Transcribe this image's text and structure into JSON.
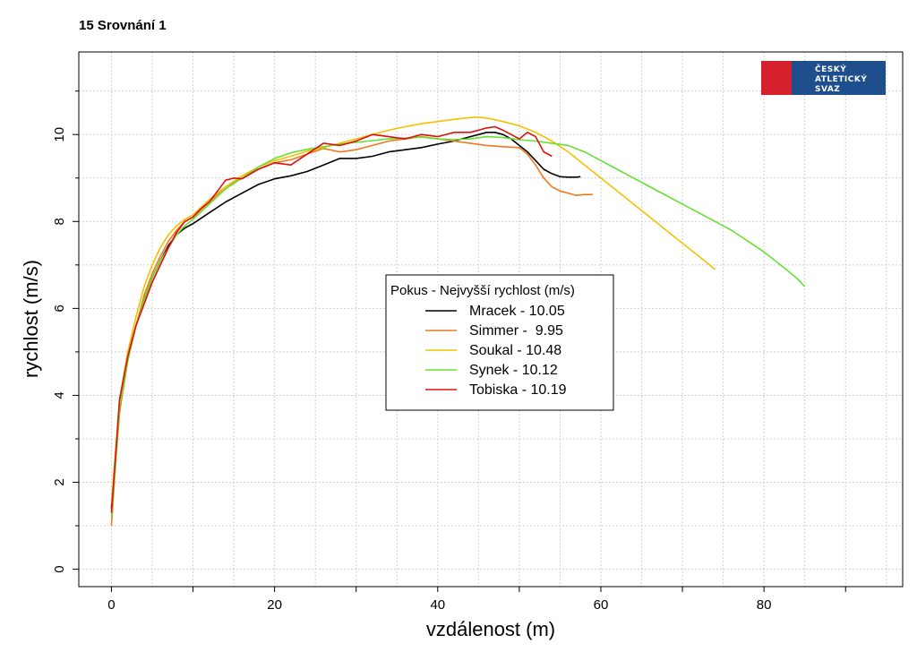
{
  "title": "15 Srovnání 1",
  "logo": {
    "lines": [
      "ČESKÝ",
      "ATLETICKÝ",
      "SVAZ"
    ],
    "colors": {
      "red": "#d6202c",
      "blue": "#1f4e8c"
    }
  },
  "chart_data": {
    "type": "line",
    "title": "15 Srovnání 1",
    "xlabel": "vzdálenost (m)",
    "ylabel": "rychlost (m/s)",
    "xlim": [
      -4,
      97
    ],
    "ylim": [
      -0.4,
      11.9
    ],
    "xticks": [
      0,
      20,
      40,
      60,
      80
    ],
    "yticks": [
      0,
      2,
      4,
      6,
      8,
      10
    ],
    "grid": true,
    "legend": {
      "title": "Pokus - Nejvyšší rychlost (m/s)",
      "placement": "center",
      "entries": [
        "Mracek - 10.05",
        "Simmer -  9.95",
        "Soukal - 10.48",
        "Synek - 10.12",
        "Tobiska - 10.19"
      ]
    },
    "series": [
      {
        "name": "Mracek - 10.05",
        "color": "#000000",
        "x": [
          0,
          0.5,
          1,
          2,
          3,
          4,
          5,
          6,
          7,
          8,
          9,
          10,
          12,
          14,
          16,
          18,
          20,
          22,
          24,
          26,
          28,
          30,
          32,
          34,
          36,
          38,
          40,
          42,
          44,
          46,
          47,
          48,
          49,
          50,
          51,
          52,
          53,
          54,
          55,
          56,
          57,
          57.5
        ],
        "y": [
          1.4,
          2.6,
          3.8,
          4.9,
          5.6,
          6.2,
          6.7,
          7.1,
          7.45,
          7.7,
          7.85,
          7.95,
          8.2,
          8.45,
          8.65,
          8.85,
          8.98,
          9.05,
          9.15,
          9.3,
          9.45,
          9.45,
          9.5,
          9.6,
          9.65,
          9.7,
          9.78,
          9.85,
          9.95,
          10.05,
          10.05,
          10.0,
          9.9,
          9.75,
          9.6,
          9.4,
          9.2,
          9.1,
          9.03,
          9.02,
          9.02,
          9.03
        ]
      },
      {
        "name": "Simmer -  9.95",
        "color": "#f07820",
        "x": [
          0,
          0.5,
          1,
          2,
          3,
          4,
          5,
          6,
          7,
          8,
          9,
          10,
          12,
          14,
          16,
          18,
          20,
          22,
          24,
          26,
          28,
          30,
          32,
          34,
          36,
          38,
          40,
          42,
          44,
          46,
          48,
          50,
          51,
          52,
          53,
          54,
          55,
          56,
          57,
          58,
          59
        ],
        "y": [
          1.0,
          2.4,
          3.6,
          4.8,
          5.6,
          6.3,
          6.8,
          7.2,
          7.55,
          7.8,
          8.0,
          8.1,
          8.45,
          8.8,
          9.0,
          9.2,
          9.35,
          9.42,
          9.55,
          9.68,
          9.6,
          9.65,
          9.75,
          9.85,
          9.9,
          9.95,
          9.9,
          9.85,
          9.8,
          9.75,
          9.72,
          9.7,
          9.55,
          9.3,
          9.0,
          8.8,
          8.7,
          8.65,
          8.6,
          8.62,
          8.62
        ]
      },
      {
        "name": "Soukal - 10.48",
        "color": "#f5c000",
        "x": [
          0,
          0.5,
          1,
          2,
          3,
          4,
          5,
          6,
          7,
          8,
          9,
          10,
          12,
          14,
          16,
          18,
          20,
          22,
          24,
          26,
          28,
          30,
          32,
          34,
          36,
          38,
          40,
          42,
          44,
          45,
          46,
          48,
          50,
          52,
          54,
          56,
          58,
          60,
          62,
          64,
          66,
          68,
          70,
          72,
          74
        ],
        "y": [
          1.5,
          2.7,
          3.9,
          5.0,
          5.8,
          6.5,
          7.0,
          7.4,
          7.7,
          7.9,
          8.05,
          8.15,
          8.5,
          8.8,
          9.05,
          9.25,
          9.4,
          9.5,
          9.62,
          9.7,
          9.8,
          9.9,
          10.0,
          10.1,
          10.18,
          10.25,
          10.3,
          10.35,
          10.39,
          10.4,
          10.38,
          10.3,
          10.2,
          10.05,
          9.85,
          9.6,
          9.3,
          9.0,
          8.7,
          8.4,
          8.1,
          7.8,
          7.5,
          7.2,
          6.9
        ]
      },
      {
        "name": "Synek - 10.12",
        "color": "#66e033",
        "x": [
          0,
          0.5,
          1,
          2,
          3,
          4,
          5,
          6,
          7,
          8,
          9,
          10,
          12,
          14,
          16,
          18,
          20,
          22,
          24,
          26,
          28,
          30,
          32,
          34,
          36,
          38,
          40,
          42,
          44,
          46,
          48,
          50,
          52,
          54,
          56,
          58,
          60,
          62,
          64,
          66,
          68,
          70,
          72,
          74,
          76,
          78,
          80,
          82,
          84,
          85
        ],
        "y": [
          1.2,
          2.4,
          3.7,
          4.8,
          5.6,
          6.2,
          6.7,
          7.1,
          7.4,
          7.7,
          7.9,
          8.05,
          8.4,
          8.75,
          9.0,
          9.25,
          9.45,
          9.58,
          9.66,
          9.72,
          9.78,
          9.82,
          9.86,
          9.9,
          9.92,
          9.94,
          9.9,
          9.88,
          9.9,
          9.95,
          9.93,
          9.88,
          9.85,
          9.8,
          9.75,
          9.6,
          9.4,
          9.2,
          9.0,
          8.8,
          8.6,
          8.4,
          8.2,
          8.0,
          7.8,
          7.55,
          7.3,
          7.0,
          6.7,
          6.5
        ]
      },
      {
        "name": "Tobiska - 10.19",
        "color": "#e01010",
        "x": [
          0,
          0.5,
          1,
          2,
          3,
          4,
          5,
          6,
          7,
          8,
          9,
          10,
          11,
          12,
          13,
          14,
          15,
          16,
          18,
          20,
          22,
          24,
          26,
          28,
          30,
          32,
          34,
          36,
          38,
          40,
          42,
          44,
          46,
          47,
          48,
          49,
          50,
          51,
          52,
          53,
          54
        ],
        "y": [
          1.3,
          2.6,
          3.9,
          4.9,
          5.6,
          6.1,
          6.6,
          7.0,
          7.4,
          7.75,
          8.0,
          8.1,
          8.3,
          8.45,
          8.7,
          8.95,
          9.0,
          8.98,
          9.2,
          9.35,
          9.3,
          9.55,
          9.8,
          9.75,
          9.85,
          10.0,
          9.95,
          9.9,
          10.0,
          9.95,
          10.05,
          10.05,
          10.15,
          10.18,
          10.1,
          10.0,
          9.9,
          10.05,
          9.95,
          9.6,
          9.5
        ]
      }
    ]
  }
}
